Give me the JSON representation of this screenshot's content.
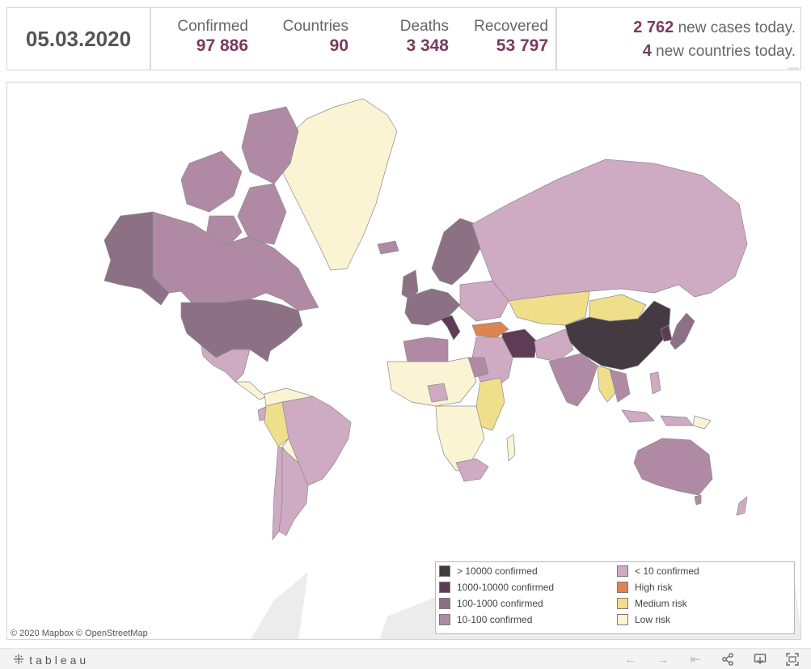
{
  "header": {
    "date": "05.03.2020",
    "stats": [
      {
        "label": "Confirmed",
        "value": "97 886"
      },
      {
        "label": "Countries",
        "value": "90"
      },
      {
        "label": "Deaths",
        "value": "3 348"
      },
      {
        "label": "Recovered",
        "value": "53 797"
      }
    ],
    "news": [
      {
        "count": "2 762",
        "text": "new cases today."
      },
      {
        "count": "4",
        "text": "new countries today."
      }
    ]
  },
  "legend": {
    "items": [
      {
        "label": "> 10000 confirmed",
        "color": "#433a42"
      },
      {
        "label": "1000-10000 confirmed",
        "color": "#5f3c55"
      },
      {
        "label": "100-1000 confirmed",
        "color": "#8c7185"
      },
      {
        "label": "10-100 confirmed",
        "color": "#b08aa4"
      },
      {
        "label": "< 10 confirmed",
        "color": "#cfaac3"
      },
      {
        "label": "High risk",
        "color": "#dc8452"
      },
      {
        "label": "Medium risk",
        "color": "#f0df8a"
      },
      {
        "label": "Low risk",
        "color": "#faf3d4"
      }
    ]
  },
  "attribution": "© 2020 Mapbox  © OpenStreetMap",
  "footer": {
    "brand": "tableau",
    "icons": [
      "undo-icon",
      "redo-icon",
      "revert-icon",
      "share-icon",
      "download-icon",
      "fullscreen-icon"
    ]
  }
}
